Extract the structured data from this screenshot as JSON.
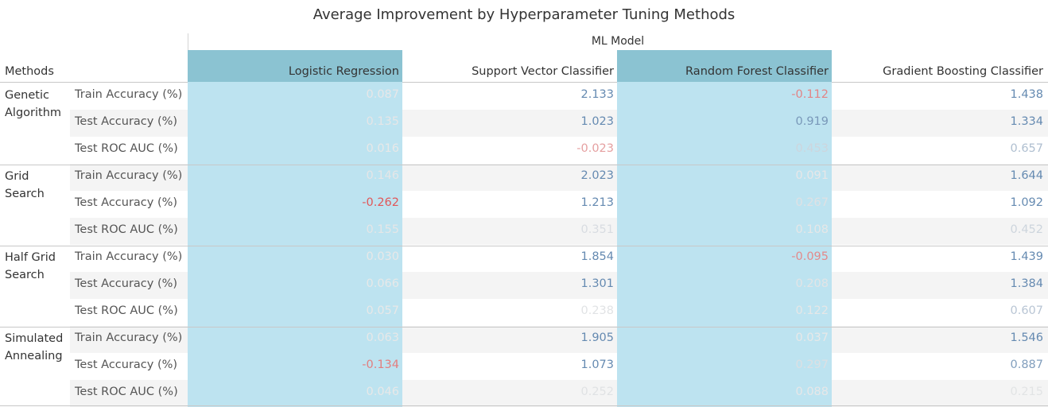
{
  "chart_data": {
    "type": "table",
    "title": "Average Improvement by Hyperparameter Tuning Methods",
    "column_group_label": "ML Model",
    "row_header_label": "Methods",
    "columns": [
      "Logistic Regression",
      "Support Vector Classifier",
      "Random Forest Classifier",
      "Gradient Boosting Classifier"
    ],
    "highlighted_columns": [
      "Logistic Regression",
      "Random Forest Classifier"
    ],
    "metrics": [
      "Train Accuracy (%)",
      "Test Accuracy (%)",
      "Test ROC AUC (%)"
    ],
    "color_scale": {
      "negative": "#e15759",
      "positive": "#4e79a7",
      "neutral": "#e8e8e8"
    },
    "groups": [
      {
        "method": "Genetic Algorithm",
        "rows": [
          {
            "metric": "Train Accuracy (%)",
            "values": [
              "0.087",
              "2.133",
              "-0.112",
              "1.438"
            ]
          },
          {
            "metric": "Test Accuracy (%)",
            "values": [
              "0.135",
              "1.023",
              "0.919",
              "1.334"
            ]
          },
          {
            "metric": "Test ROC AUC (%)",
            "values": [
              "0.016",
              "-0.023",
              "0.453",
              "0.657"
            ]
          }
        ]
      },
      {
        "method": "Grid Search",
        "rows": [
          {
            "metric": "Train Accuracy (%)",
            "values": [
              "0.146",
              "2.023",
              "0.091",
              "1.644"
            ]
          },
          {
            "metric": "Test Accuracy (%)",
            "values": [
              "-0.262",
              "1.213",
              "0.267",
              "1.092"
            ]
          },
          {
            "metric": "Test ROC AUC (%)",
            "values": [
              "0.155",
              "0.351",
              "0.108",
              "0.452"
            ]
          }
        ]
      },
      {
        "method": "Half Grid Search",
        "rows": [
          {
            "metric": "Train Accuracy (%)",
            "values": [
              "0.030",
              "1.854",
              "-0.095",
              "1.439"
            ]
          },
          {
            "metric": "Test Accuracy (%)",
            "values": [
              "0.066",
              "1.301",
              "0.208",
              "1.384"
            ]
          },
          {
            "metric": "Test ROC AUC (%)",
            "values": [
              "0.057",
              "0.238",
              "0.122",
              "0.607"
            ]
          }
        ]
      },
      {
        "method": "Simulated Annealing",
        "rows": [
          {
            "metric": "Train Accuracy (%)",
            "values": [
              "0.063",
              "1.905",
              "0.037",
              "1.546"
            ]
          },
          {
            "metric": "Test Accuracy (%)",
            "values": [
              "-0.134",
              "1.073",
              "0.297",
              "0.887"
            ]
          },
          {
            "metric": "Test ROC AUC (%)",
            "values": [
              "0.046",
              "0.252",
              "0.088",
              "0.215"
            ]
          }
        ]
      }
    ]
  }
}
